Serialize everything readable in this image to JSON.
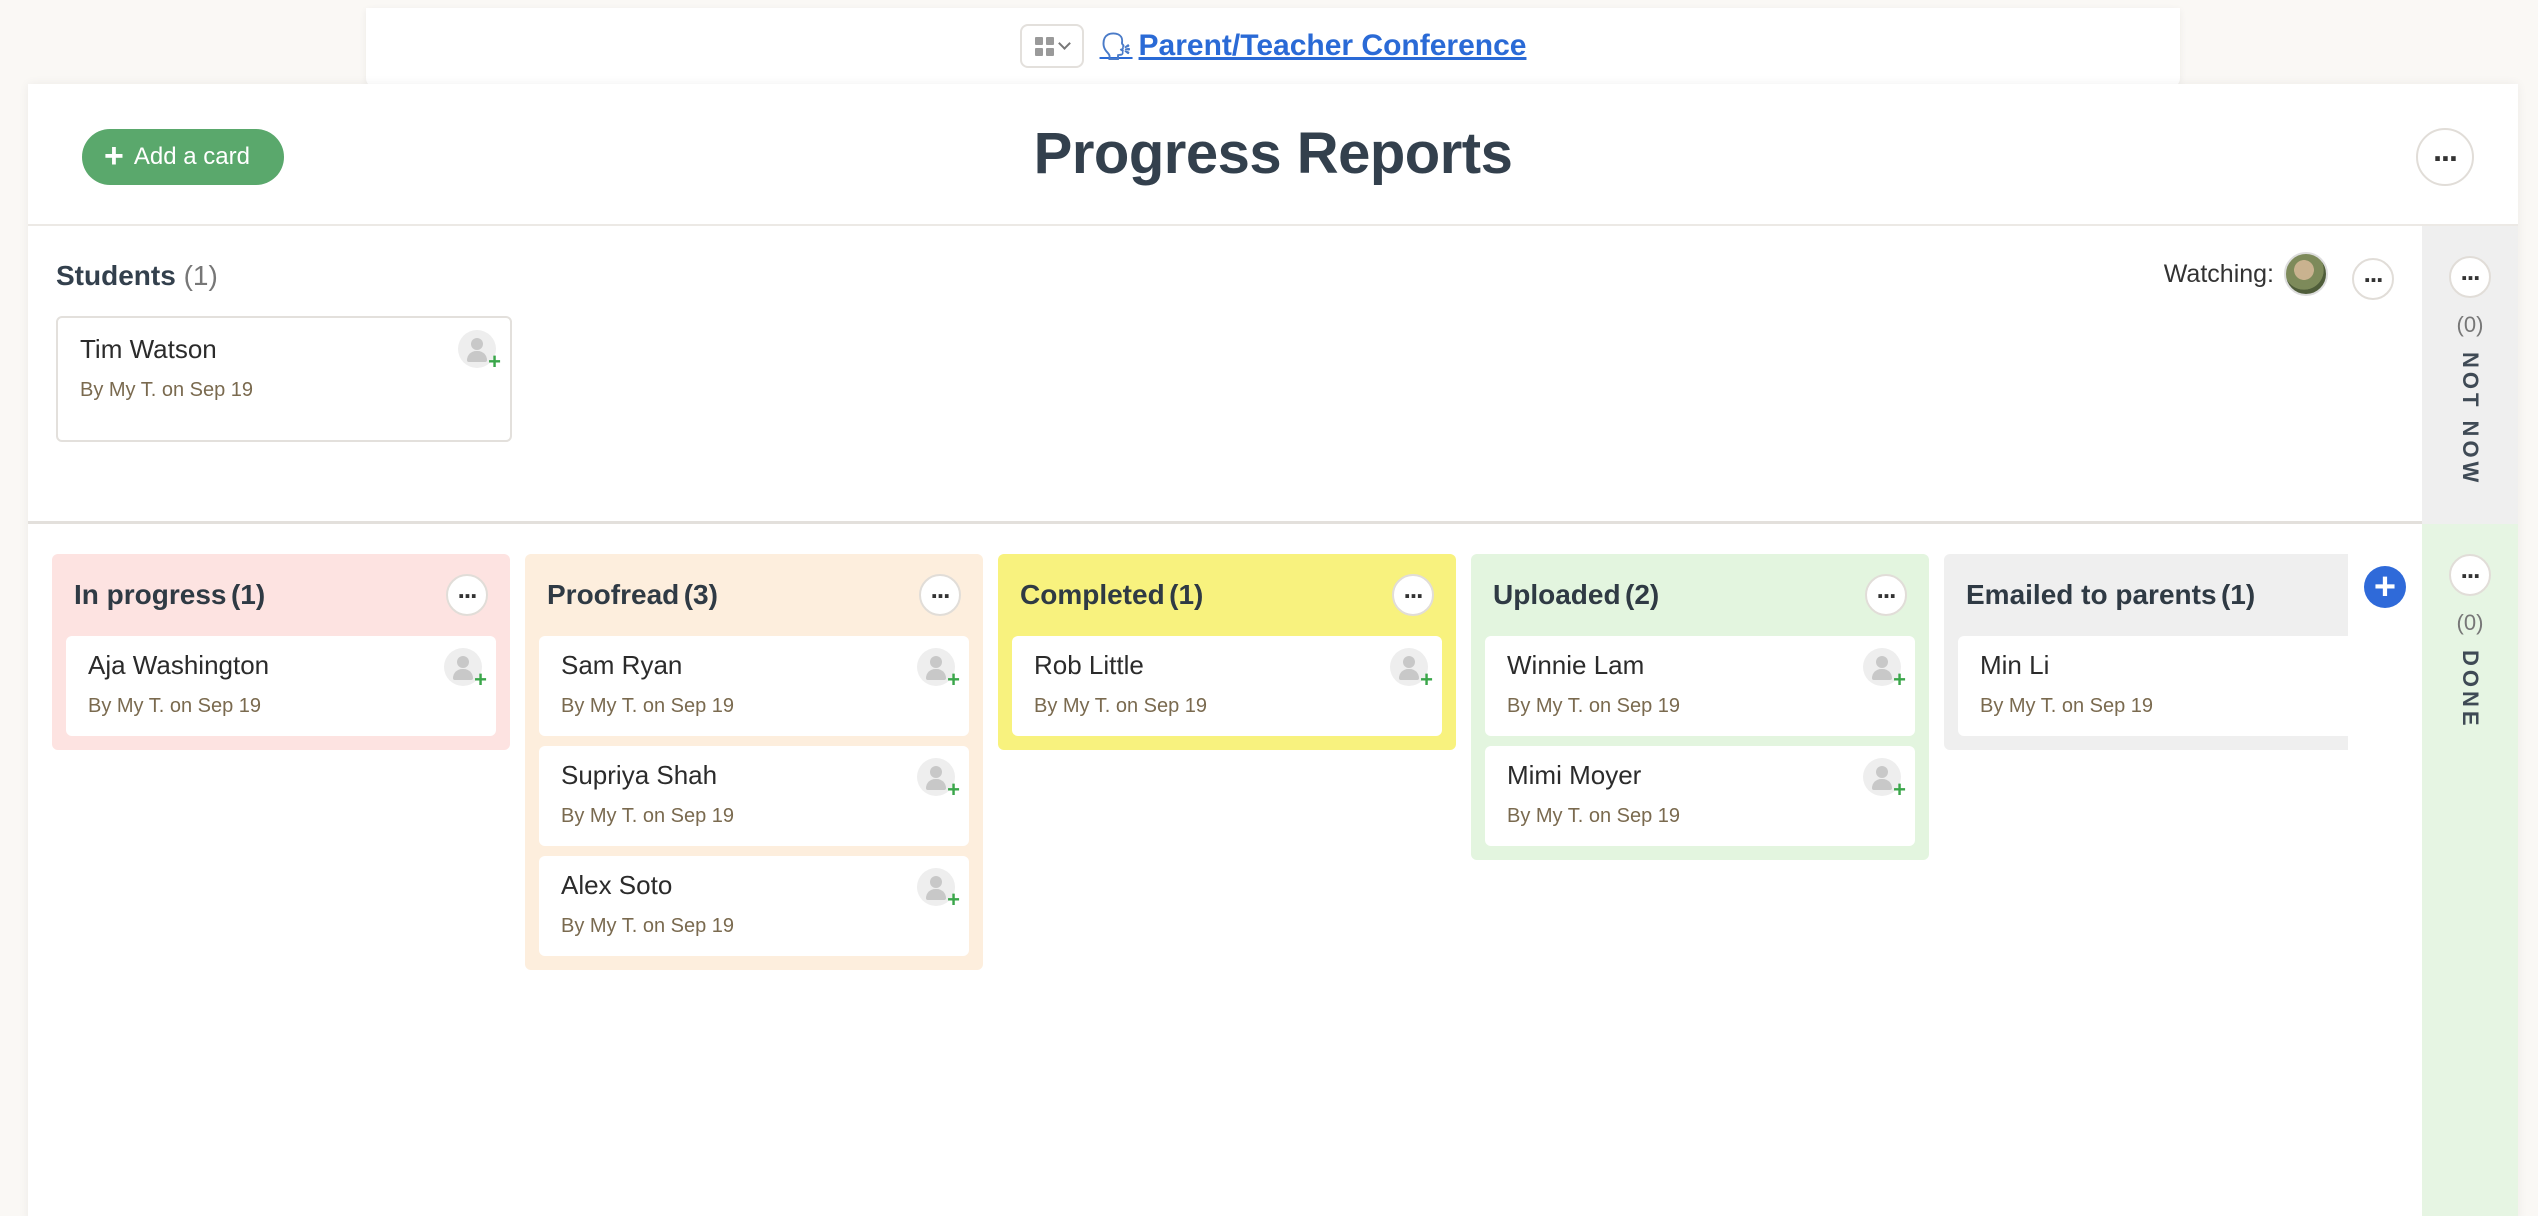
{
  "breadcrumb": {
    "emoji": "🗣",
    "title": "Parent/Teacher Conference"
  },
  "header": {
    "add_card_label": "Add a card",
    "title": "Progress Reports"
  },
  "triage": {
    "title": "Students",
    "count": "(1)",
    "watching_label": "Watching:",
    "cards": [
      {
        "title": "Tim Watson",
        "meta": "By My T. on Sep 19"
      }
    ]
  },
  "rails": {
    "not_now": {
      "count": "(0)",
      "label": "NOT NOW"
    },
    "done": {
      "count": "(0)",
      "label": "DONE"
    }
  },
  "columns": [
    {
      "title": "In progress",
      "count": "(1)",
      "color": "#fde3e1",
      "cards": [
        {
          "title": "Aja Washington",
          "meta": "By My T. on Sep 19"
        }
      ]
    },
    {
      "title": "Proofread",
      "count": "(3)",
      "color": "#fdeedd",
      "cards": [
        {
          "title": "Sam Ryan",
          "meta": "By My T. on Sep 19"
        },
        {
          "title": "Supriya Shah",
          "meta": "By My T. on Sep 19"
        },
        {
          "title": "Alex Soto",
          "meta": "By My T. on Sep 19"
        }
      ]
    },
    {
      "title": "Completed",
      "count": "(1)",
      "color": "#f8f27e",
      "cards": [
        {
          "title": "Rob Little",
          "meta": "By My T. on Sep 19"
        }
      ]
    },
    {
      "title": "Uploaded",
      "count": "(2)",
      "color": "#e3f5df",
      "cards": [
        {
          "title": "Winnie Lam",
          "meta": "By My T. on Sep 19"
        },
        {
          "title": "Mimi Moyer",
          "meta": "By My T. on Sep 19"
        }
      ]
    },
    {
      "title": "Emailed to parents",
      "count": "(1)",
      "color": "#efefef",
      "cards": [
        {
          "title": "Min Li",
          "meta": "By My T. on Sep 19"
        }
      ]
    }
  ],
  "colors": {
    "add_card_bg": "#5aa86c",
    "add_column_bg": "#2f6ad9",
    "link": "#2a6ad6",
    "done_rail": "#e6f5e3",
    "not_now_rail": "#efefef"
  },
  "icons": {
    "switcher": "grid-icon",
    "assign": "assign-person-icon",
    "more": "more-dots-icon",
    "add_column": "plus-icon"
  }
}
